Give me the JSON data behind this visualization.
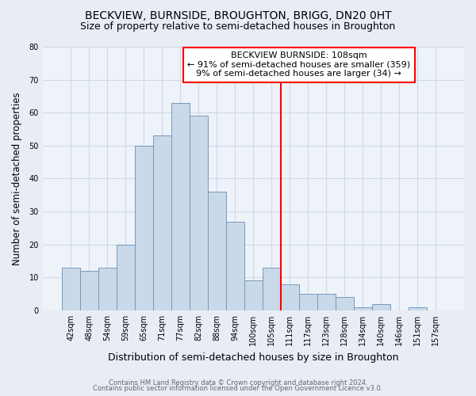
{
  "title": "BECKVIEW, BURNSIDE, BROUGHTON, BRIGG, DN20 0HT",
  "subtitle": "Size of property relative to semi-detached houses in Broughton",
  "xlabel": "Distribution of semi-detached houses by size in Broughton",
  "ylabel": "Number of semi-detached properties",
  "footer1": "Contains HM Land Registry data © Crown copyright and database right 2024.",
  "footer2": "Contains public sector information licensed under the Open Government Licence v3.0.",
  "categories": [
    "42sqm",
    "48sqm",
    "54sqm",
    "59sqm",
    "65sqm",
    "71sqm",
    "77sqm",
    "82sqm",
    "88sqm",
    "94sqm",
    "100sqm",
    "105sqm",
    "111sqm",
    "117sqm",
    "123sqm",
    "128sqm",
    "134sqm",
    "140sqm",
    "146sqm",
    "151sqm",
    "157sqm"
  ],
  "values": [
    13,
    12,
    13,
    20,
    50,
    53,
    63,
    59,
    36,
    27,
    9,
    13,
    8,
    5,
    5,
    4,
    1,
    2,
    0,
    1,
    0
  ],
  "bar_color": "#c9d9ea",
  "bar_edge_color": "#7799bb",
  "vline_x_index": 11.5,
  "vline_color": "red",
  "annotation_title": "BECKVIEW BURNSIDE: 108sqm",
  "annotation_line1": "← 91% of semi-detached houses are smaller (359)",
  "annotation_line2": "9% of semi-detached houses are larger (34) →",
  "annotation_box_color": "white",
  "annotation_box_edge_color": "red",
  "ylim": [
    0,
    80
  ],
  "yticks": [
    0,
    10,
    20,
    30,
    40,
    50,
    60,
    70,
    80
  ],
  "bg_color": "#e8edf5",
  "plot_bg_color": "#eef3fa",
  "grid_color": "#d0d8e8",
  "title_fontsize": 10,
  "subtitle_fontsize": 9,
  "xlabel_fontsize": 9,
  "ylabel_fontsize": 8.5,
  "tick_fontsize": 7,
  "annotation_fontsize": 8,
  "footer_fontsize": 6
}
